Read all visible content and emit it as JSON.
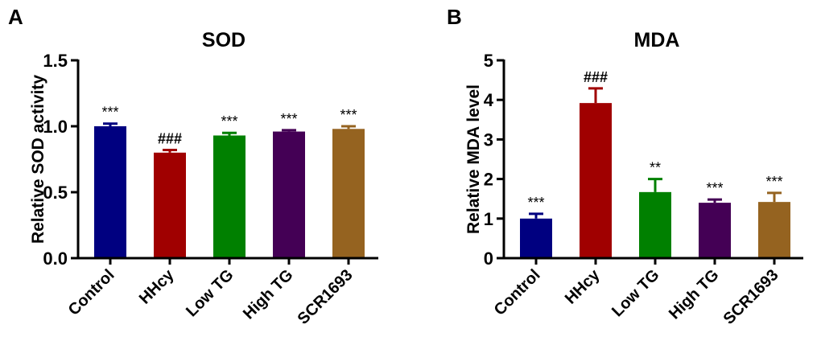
{
  "chart_data": [
    {
      "type": "bar",
      "panel_label": "A",
      "title": "SOD",
      "xlabel": "",
      "ylabel": "Relative SOD activity",
      "ylim": [
        0,
        1.5
      ],
      "yticks": [
        "0.0",
        "0.5",
        "1.0",
        "1.5"
      ],
      "ytick_values": [
        0,
        0.5,
        1.0,
        1.5
      ],
      "categories": [
        "Control",
        "HHcy",
        "Low TG",
        "High TG",
        "SCR1693"
      ],
      "values": [
        1.0,
        0.8,
        0.93,
        0.96,
        0.98
      ],
      "errors": [
        0.02,
        0.02,
        0.02,
        0.01,
        0.02
      ],
      "annotations": [
        "***",
        "###",
        "***",
        "***",
        "***"
      ],
      "colors": [
        "#000080",
        "#a00000",
        "#008000",
        "#440055",
        "#956320"
      ],
      "grid": false
    },
    {
      "type": "bar",
      "panel_label": "B",
      "title": "MDA",
      "xlabel": "",
      "ylabel": "Relative MDA level",
      "ylim": [
        0,
        5
      ],
      "yticks": [
        "0",
        "1",
        "2",
        "3",
        "4",
        "5"
      ],
      "ytick_values": [
        0,
        1,
        2,
        3,
        4,
        5
      ],
      "categories": [
        "Control",
        "HHcy",
        "Low TG",
        "High TG",
        "SCR1693"
      ],
      "values": [
        1.0,
        3.92,
        1.67,
        1.4,
        1.42
      ],
      "errors": [
        0.12,
        0.37,
        0.33,
        0.08,
        0.23
      ],
      "annotations": [
        "***",
        "###",
        "**",
        "***",
        "***"
      ],
      "colors": [
        "#000080",
        "#a00000",
        "#008000",
        "#440055",
        "#956320"
      ],
      "grid": false
    }
  ]
}
